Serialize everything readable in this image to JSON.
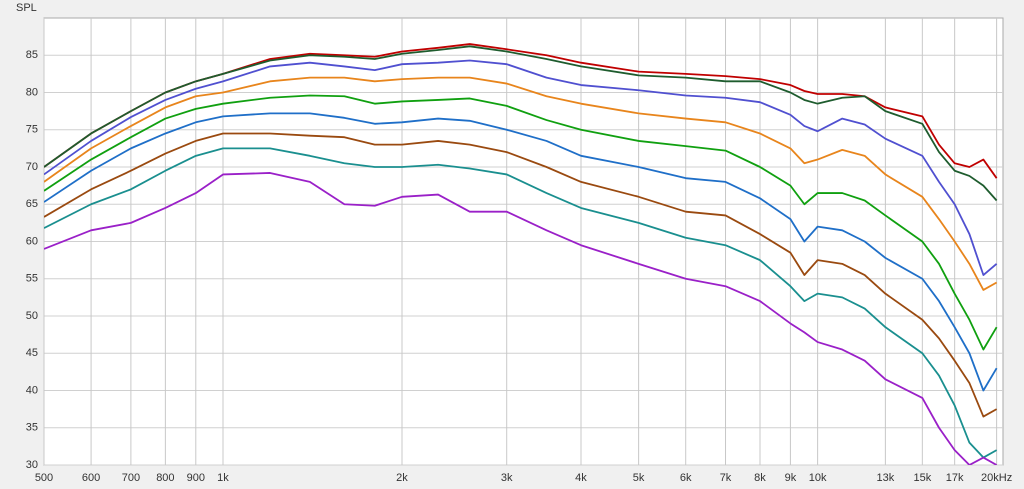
{
  "chart_data": {
    "type": "line",
    "ylabel": "SPL",
    "log_x": true,
    "grid": true,
    "x": [
      500,
      600,
      700,
      800,
      900,
      1000,
      1200,
      1400,
      1600,
      1800,
      2000,
      2300,
      2600,
      3000,
      3500,
      4000,
      5000,
      6000,
      7000,
      8000,
      9000,
      9500,
      10000,
      11000,
      12000,
      13000,
      15000,
      16000,
      17000,
      18000,
      19000,
      20000
    ],
    "series": [
      {
        "color": "#c00000",
        "values": [
          70,
          74.5,
          77.5,
          80,
          81.5,
          82.5,
          84.5,
          85.2,
          85,
          84.8,
          85.5,
          86,
          86.5,
          85.8,
          85,
          84,
          82.8,
          82.5,
          82.2,
          81.8,
          81,
          80.2,
          79.8,
          79.8,
          79.5,
          78,
          76.8,
          73,
          70.5,
          70,
          71,
          68.5
        ]
      },
      {
        "color": "#1e5c2e",
        "values": [
          70,
          74.5,
          77.5,
          80,
          81.5,
          82.5,
          84.3,
          85,
          84.8,
          84.5,
          85.2,
          85.7,
          86.2,
          85.5,
          84.5,
          83.5,
          82.3,
          82,
          81.5,
          81.5,
          80,
          79,
          78.5,
          79.3,
          79.5,
          77.5,
          75.8,
          72,
          69.5,
          68.8,
          67.5,
          65.5
        ]
      },
      {
        "color": "#5050d0",
        "values": [
          69,
          73.5,
          76.7,
          79,
          80.5,
          81.5,
          83.5,
          84,
          83.5,
          83,
          83.8,
          84,
          84.3,
          83.8,
          82,
          81,
          80.3,
          79.6,
          79.3,
          78.7,
          77,
          75.5,
          74.8,
          76.5,
          75.7,
          73.8,
          71.5,
          68,
          65,
          61,
          55.5,
          57
        ]
      },
      {
        "color": "#e8851c",
        "values": [
          68,
          72.5,
          75.5,
          78,
          79.5,
          80,
          81.5,
          82,
          82,
          81.5,
          81.8,
          82,
          82,
          81.2,
          79.5,
          78.5,
          77.2,
          76.5,
          76,
          74.5,
          72.5,
          70.5,
          71,
          72.3,
          71.5,
          69,
          66,
          63,
          60,
          57,
          53.5,
          54.5
        ]
      },
      {
        "color": "#10a010",
        "values": [
          66.8,
          71,
          74,
          76.5,
          77.8,
          78.5,
          79.3,
          79.6,
          79.5,
          78.5,
          78.8,
          79,
          79.2,
          78.2,
          76.3,
          75,
          73.5,
          72.8,
          72.2,
          70,
          67.5,
          65,
          66.5,
          66.5,
          65.5,
          63.5,
          60,
          57,
          53,
          49.5,
          45.5,
          48.5
        ]
      },
      {
        "color": "#1f6fc8",
        "values": [
          65.3,
          69.5,
          72.5,
          74.5,
          76,
          76.8,
          77.2,
          77.2,
          76.6,
          75.8,
          76,
          76.5,
          76.2,
          75,
          73.5,
          71.5,
          70,
          68.5,
          68,
          65.8,
          63,
          60,
          62,
          61.5,
          60,
          57.8,
          55,
          52,
          48.5,
          45,
          40,
          43
        ]
      },
      {
        "color": "#9a4a10",
        "values": [
          63.3,
          67,
          69.5,
          71.8,
          73.5,
          74.5,
          74.5,
          74.2,
          74,
          73,
          73,
          73.5,
          73,
          72,
          70,
          68,
          66,
          64,
          63.5,
          61,
          58.5,
          55.5,
          57.5,
          57,
          55.5,
          53,
          49.5,
          47,
          44,
          41,
          36.5,
          37.5
        ]
      },
      {
        "color": "#1a8f8f",
        "values": [
          61.8,
          65,
          67,
          69.5,
          71.5,
          72.5,
          72.5,
          71.5,
          70.5,
          70,
          70,
          70.3,
          69.8,
          69,
          66.5,
          64.5,
          62.5,
          60.5,
          59.5,
          57.5,
          54,
          52,
          53,
          52.5,
          51,
          48.5,
          45,
          42,
          38,
          33,
          31,
          32
        ]
      },
      {
        "color": "#9a20c8",
        "values": [
          59,
          61.5,
          62.5,
          64.5,
          66.5,
          69,
          69.2,
          68,
          65,
          64.8,
          66,
          66.3,
          64,
          64,
          61.5,
          59.5,
          57,
          55,
          54,
          52,
          49,
          47.8,
          46.5,
          45.5,
          44,
          41.5,
          39,
          35,
          32,
          30,
          31,
          30
        ]
      }
    ],
    "xlim": [
      500,
      20500
    ],
    "ylim": [
      30,
      90
    ],
    "xticks": [
      500,
      600,
      700,
      800,
      900,
      {
        "value": 1000,
        "label": "1k"
      },
      {
        "value": 2000,
        "label": "2k"
      },
      {
        "value": 3000,
        "label": "3k"
      },
      {
        "value": 4000,
        "label": "4k"
      },
      {
        "value": 5000,
        "label": "5k"
      },
      {
        "value": 6000,
        "label": "6k"
      },
      {
        "value": 7000,
        "label": "7k"
      },
      {
        "value": 8000,
        "label": "8k"
      },
      {
        "value": 9000,
        "label": "9k"
      },
      {
        "value": 10000,
        "label": "10k"
      },
      {
        "value": 13000,
        "label": "13k"
      },
      {
        "value": 15000,
        "label": "15k"
      },
      {
        "value": 17000,
        "label": "17k"
      },
      {
        "value": 20000,
        "label": "20kHz"
      }
    ],
    "yticks": [
      30,
      35,
      40,
      45,
      50,
      55,
      60,
      65,
      70,
      75,
      80,
      85
    ]
  }
}
